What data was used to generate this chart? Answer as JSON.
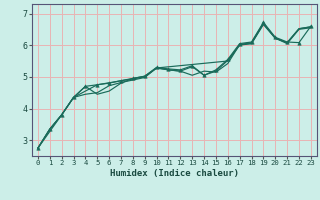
{
  "xlabel": "Humidex (Indice chaleur)",
  "bg_color": "#cceee8",
  "grid_color": "#e8b4b4",
  "line_color": "#1a6b5a",
  "xlim": [
    -0.5,
    23.5
  ],
  "ylim": [
    2.5,
    7.3
  ],
  "xticks": [
    0,
    1,
    2,
    3,
    4,
    5,
    6,
    7,
    8,
    9,
    10,
    11,
    12,
    13,
    14,
    15,
    16,
    17,
    18,
    19,
    20,
    21,
    22,
    23
  ],
  "yticks": [
    3,
    4,
    5,
    6,
    7
  ],
  "line_main_x": [
    0,
    1,
    2,
    3,
    4,
    5,
    6,
    7,
    8,
    9,
    10,
    11,
    12,
    13,
    14,
    15,
    16,
    17,
    18,
    19,
    20,
    21,
    22,
    23
  ],
  "line_main_y": [
    2.75,
    3.35,
    3.8,
    4.35,
    4.7,
    4.75,
    4.8,
    4.88,
    4.95,
    5.02,
    5.3,
    5.25,
    5.22,
    5.35,
    5.05,
    5.22,
    5.55,
    6.05,
    6.1,
    6.72,
    6.25,
    6.1,
    6.08,
    6.6
  ],
  "line_a_x": [
    0,
    1,
    2,
    3,
    4,
    5,
    6,
    7,
    8,
    9,
    10,
    11,
    12,
    13,
    14,
    15,
    16,
    17,
    18,
    19,
    20,
    21,
    22,
    23
  ],
  "line_a_y": [
    2.75,
    3.35,
    3.8,
    4.35,
    4.45,
    4.5,
    4.72,
    4.82,
    4.9,
    4.98,
    5.28,
    5.22,
    5.18,
    5.05,
    5.18,
    5.15,
    5.42,
    6.02,
    6.05,
    6.65,
    6.22,
    6.05,
    6.5,
    6.55
  ],
  "line_b_x": [
    0,
    1,
    2,
    3,
    4,
    5,
    6,
    7,
    8,
    9,
    10,
    11,
    12,
    13,
    14,
    15,
    16,
    17,
    18,
    19,
    20,
    21,
    22,
    23
  ],
  "line_b_y": [
    2.75,
    3.35,
    3.8,
    4.35,
    4.7,
    4.45,
    4.55,
    4.8,
    4.95,
    5.02,
    5.28,
    5.22,
    5.18,
    5.32,
    5.05,
    5.18,
    5.52,
    6.02,
    6.08,
    6.7,
    6.22,
    6.08,
    6.52,
    6.58
  ],
  "line_c_x": [
    0,
    2,
    3,
    5,
    9,
    10,
    16,
    17,
    18,
    19,
    20,
    21,
    22,
    23
  ],
  "line_c_y": [
    2.75,
    3.8,
    4.35,
    4.75,
    5.0,
    5.28,
    5.5,
    6.0,
    6.05,
    6.68,
    6.22,
    6.08,
    6.52,
    6.58
  ]
}
